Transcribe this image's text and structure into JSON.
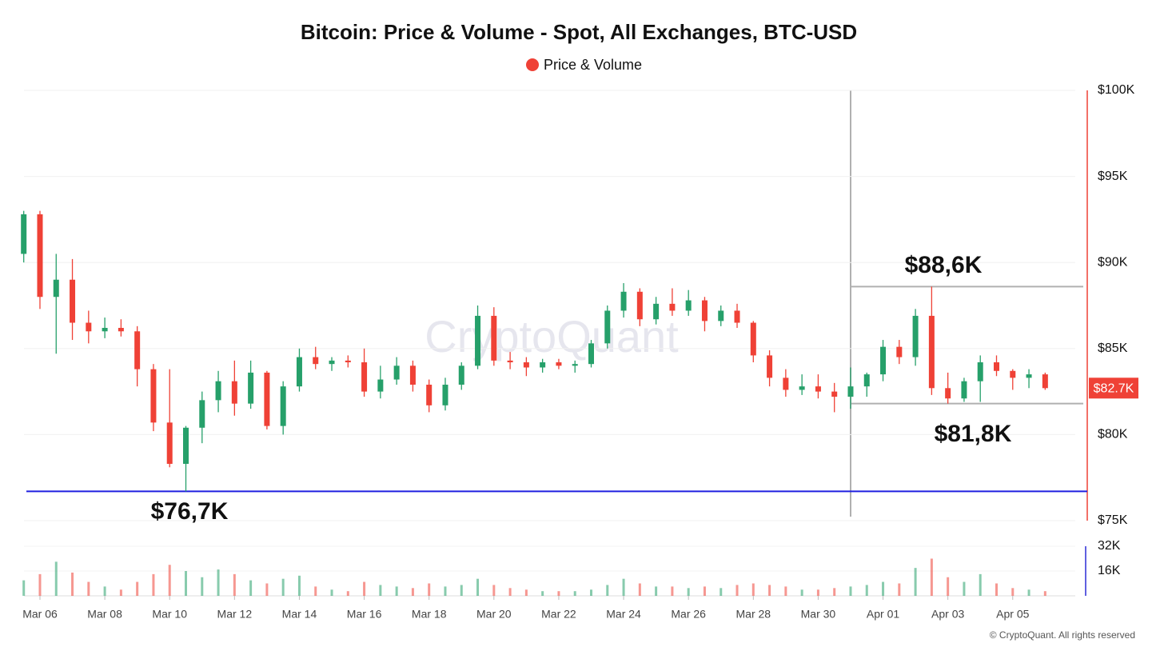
{
  "chart_data": {
    "type": "candlestick",
    "title": "Bitcoin: Price & Volume - Spot, All Exchanges, BTC-USD",
    "legend": "Price & Volume",
    "legend_color": "#ef4136",
    "watermark": "CryptoQuant",
    "footer": "© CryptoQuant. All rights reserved",
    "up_color": "#26a06a",
    "down_color": "#ef4136",
    "categories": [
      null,
      "Mar 06",
      null,
      null,
      null,
      "Mar 08",
      null,
      null,
      null,
      "Mar 10",
      null,
      null,
      null,
      "Mar 12",
      null,
      null,
      null,
      "Mar 14",
      null,
      null,
      null,
      "Mar 16",
      null,
      null,
      null,
      "Mar 18",
      null,
      null,
      null,
      "Mar 20",
      null,
      null,
      null,
      "Mar 22",
      null,
      null,
      null,
      "Mar 24",
      null,
      null,
      null,
      "Mar 26",
      null,
      null,
      null,
      "Mar 28",
      null,
      null,
      null,
      "Mar 30",
      null,
      null,
      null,
      "Apr 01",
      null,
      null,
      null,
      "Apr 03",
      null,
      null,
      null,
      "Apr 05",
      null,
      null
    ],
    "open": [
      90500,
      92800,
      88000,
      89000,
      86500,
      86000,
      86200,
      86000,
      83800,
      80700,
      78300,
      80400,
      82000,
      83100,
      81800,
      83600,
      80500,
      82800,
      84500,
      84100,
      84300,
      84200,
      82500,
      83200,
      84000,
      82900,
      81700,
      82900,
      84000,
      86900,
      84300,
      84200,
      83900,
      84200,
      84000,
      84100,
      85300,
      87200,
      88300,
      86700,
      87600,
      87200,
      87800,
      86600,
      87200,
      86500,
      84600,
      83300,
      82600,
      82800,
      82500,
      82200,
      82800,
      83500,
      85100,
      84500,
      86900,
      82700,
      82100,
      83100,
      84200,
      83700,
      83300,
      83500
    ],
    "high": [
      93000,
      93000,
      90500,
      90200,
      87200,
      86800,
      86700,
      86300,
      84100,
      83800,
      80500,
      82500,
      83700,
      84300,
      84300,
      83700,
      83100,
      85000,
      85100,
      84500,
      84600,
      85000,
      84000,
      84500,
      84300,
      83200,
      83300,
      84200,
      87500,
      87400,
      84800,
      84500,
      84400,
      84400,
      84300,
      85500,
      87500,
      88800,
      88500,
      88000,
      88500,
      88400,
      88000,
      87500,
      87600,
      86600,
      84900,
      83800,
      83500,
      83500,
      83000,
      83900,
      83600,
      85500,
      85500,
      87300,
      88600,
      83600,
      83300,
      84600,
      84600,
      83800,
      83800,
      83600
    ],
    "low": [
      90000,
      87300,
      84700,
      85500,
      85300,
      85600,
      85700,
      82800,
      80200,
      78100,
      76700,
      79500,
      81300,
      81100,
      81500,
      80300,
      80000,
      82500,
      83800,
      83700,
      83900,
      82200,
      82100,
      82900,
      82500,
      81300,
      81400,
      82600,
      83800,
      84000,
      83800,
      83400,
      83600,
      83800,
      83600,
      83900,
      85000,
      86800,
      86300,
      86400,
      86900,
      86900,
      86000,
      86300,
      86200,
      84200,
      82800,
      82200,
      82300,
      82100,
      81300,
      81500,
      82200,
      83100,
      84100,
      84000,
      82300,
      81800,
      81900,
      81900,
      83400,
      82600,
      82700,
      82600
    ],
    "close": [
      92800,
      88000,
      89000,
      86500,
      86000,
      86200,
      86000,
      83800,
      80700,
      78300,
      80400,
      82000,
      83100,
      81800,
      83600,
      80500,
      82800,
      84500,
      84100,
      84300,
      84200,
      82500,
      83200,
      84000,
      82900,
      81700,
      82900,
      84000,
      86900,
      84300,
      84200,
      83900,
      84200,
      84000,
      84100,
      85300,
      87200,
      88300,
      86700,
      87600,
      87200,
      87800,
      86600,
      87200,
      86500,
      84600,
      83300,
      82600,
      82800,
      82500,
      82200,
      82800,
      83500,
      85100,
      84500,
      86900,
      82700,
      82100,
      83100,
      84200,
      83700,
      83300,
      83500,
      82700
    ],
    "volume": [
      10000,
      14000,
      22000,
      15000,
      9000,
      6000,
      4000,
      9000,
      14000,
      20000,
      16000,
      12000,
      17000,
      14000,
      10000,
      8000,
      11000,
      13000,
      6000,
      4000,
      3000,
      9000,
      7000,
      6000,
      5000,
      8000,
      6000,
      7000,
      11000,
      7000,
      5000,
      4000,
      3000,
      3000,
      3000,
      4000,
      7000,
      11000,
      8000,
      6000,
      6000,
      5000,
      6000,
      5000,
      7000,
      8000,
      7000,
      6000,
      4000,
      4000,
      5000,
      6000,
      7000,
      9000,
      8000,
      18000,
      24000,
      12000,
      9000,
      14000,
      8000,
      5000,
      4000,
      3000
    ],
    "ylim": [
      75000,
      100000
    ],
    "yticks": [
      {
        "value": 75000,
        "label": "$75K"
      },
      {
        "value": 80000,
        "label": "$80K"
      },
      {
        "value": 85000,
        "label": "$85K"
      },
      {
        "value": 90000,
        "label": "$90K"
      },
      {
        "value": 95000,
        "label": "$95K"
      },
      {
        "value": 100000,
        "label": "$100K"
      }
    ],
    "y_axis_color": "#ef4136",
    "volume_ylim": [
      0,
      32000
    ],
    "volume_yticks": [
      {
        "value": 16000,
        "label": "16K"
      },
      {
        "value": 32000,
        "label": "32K"
      }
    ],
    "volume_axis_color": "#2b2bd6",
    "last_price": {
      "value": 82700,
      "label": "$82.7K"
    },
    "grid": true,
    "annotations": [
      {
        "text": "$88,6K",
        "value": 88600,
        "color": "#b0b0b0"
      },
      {
        "text": "$81,8K",
        "value": 81800,
        "color": "#b0b0b0"
      },
      {
        "text": "$76,7K",
        "value": 76700,
        "color": "#1f1fe0"
      }
    ]
  }
}
